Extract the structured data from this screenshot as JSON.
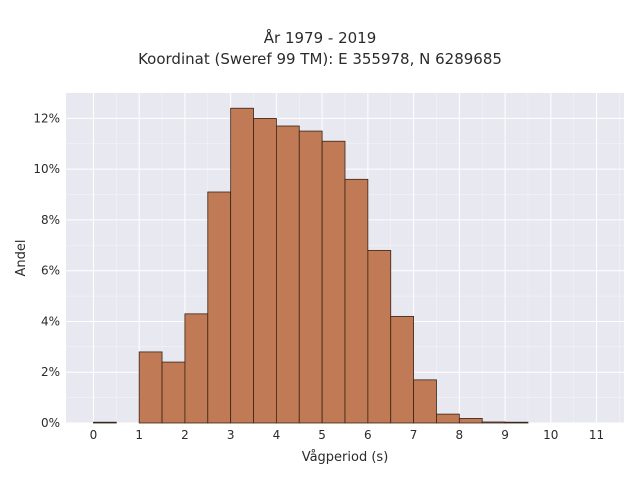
{
  "title_line1": "År 1979 - 2019",
  "title_line2": "Koordinat (Sweref 99 TM): E 355978, N 6289685",
  "chart_data": {
    "type": "bar",
    "title": "År 1979 - 2019\nKoordinat (Sweref 99 TM): E 355978, N 6289685",
    "xlabel": "Vågperiod (s)",
    "ylabel": "Andel",
    "xlim": [
      -0.6,
      11.6
    ],
    "ylim": [
      0,
      0.13
    ],
    "x_ticks": [
      0,
      1,
      2,
      3,
      4,
      5,
      6,
      7,
      8,
      9,
      10,
      11
    ],
    "y_ticks": [
      0,
      0.02,
      0.04,
      0.06,
      0.08,
      0.1,
      0.12
    ],
    "y_tick_labels": [
      "0%",
      "2%",
      "4%",
      "6%",
      "8%",
      "10%",
      "12%"
    ],
    "bin_width": 0.5,
    "bin_starts": [
      0.0,
      0.5,
      1.0,
      1.5,
      2.0,
      2.5,
      3.0,
      3.5,
      4.0,
      4.5,
      5.0,
      5.5,
      6.0,
      6.5,
      7.0,
      7.5,
      8.0,
      8.5,
      9.0,
      9.5,
      10.0,
      10.5
    ],
    "values": [
      0.0003,
      0.0,
      0.028,
      0.024,
      0.043,
      0.091,
      0.124,
      0.12,
      0.117,
      0.115,
      0.111,
      0.096,
      0.068,
      0.042,
      0.017,
      0.0035,
      0.0018,
      0.0004,
      0.0003,
      0.0,
      0.0,
      0.0
    ],
    "grid": true,
    "colors": {
      "bar_fill": "#c07a55",
      "bar_edge": "#3a2418",
      "plot_background": "#e8e8f0",
      "grid": "#ffffff"
    }
  }
}
